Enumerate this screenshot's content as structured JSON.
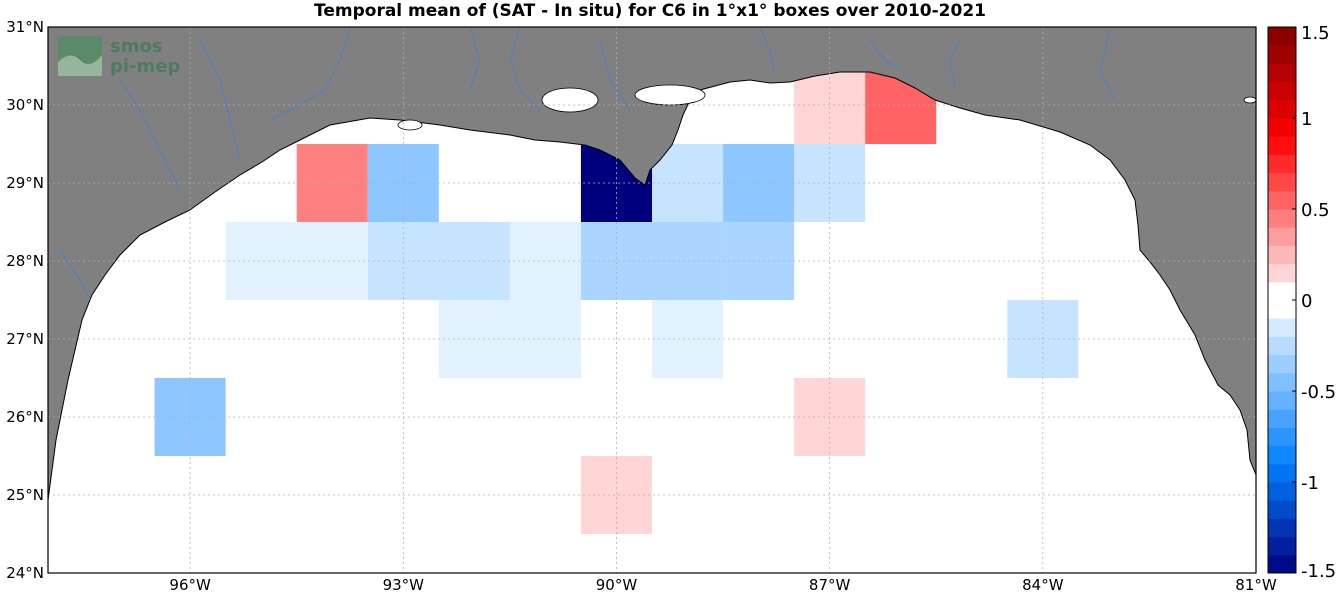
{
  "title": "Temporal mean of (SAT - In situ) for C6 in 1°x1° boxes over 2010-2021",
  "logo": {
    "line1": "smos",
    "line2": "pi-mep"
  },
  "map": {
    "lon_range": [
      -98,
      -81
    ],
    "lat_range": [
      24,
      31
    ],
    "lat_ticks": [
      {
        "value": 24,
        "label": "24°N"
      },
      {
        "value": 25,
        "label": "25°N"
      },
      {
        "value": 26,
        "label": "26°N"
      },
      {
        "value": 27,
        "label": "27°N"
      },
      {
        "value": 28,
        "label": "28°N"
      },
      {
        "value": 29,
        "label": "29°N"
      },
      {
        "value": 30,
        "label": "30°N"
      },
      {
        "value": 31,
        "label": "31°N"
      }
    ],
    "lon_ticks": [
      {
        "value": -96,
        "label": "96°W"
      },
      {
        "value": -93,
        "label": "93°W"
      },
      {
        "value": -90,
        "label": "90°W"
      },
      {
        "value": -87,
        "label": "87°W"
      },
      {
        "value": -84,
        "label": "84°W"
      },
      {
        "value": -81,
        "label": "81°W"
      }
    ],
    "land_color": "#808080",
    "river_color": "#4a7fc4",
    "grid": true
  },
  "colorbar": {
    "range": [
      -1.5,
      1.5
    ],
    "step": 0.1,
    "ticks": [
      {
        "value": 1.5,
        "label": "1.5"
      },
      {
        "value": 1,
        "label": "1"
      },
      {
        "value": 0.5,
        "label": "0.5"
      },
      {
        "value": 0,
        "label": "0"
      },
      {
        "value": -0.5,
        "label": "-0.5"
      },
      {
        "value": -1,
        "label": "-1"
      },
      {
        "value": -1.5,
        "label": "-1.5"
      }
    ],
    "neg_color": "#00007f",
    "pos_color": "#7f0000"
  },
  "chart_data": {
    "type": "heatmap",
    "title": "Temporal mean of (SAT - In situ) for C6 in 1°x1° boxes over 2010-2021",
    "xlabel": "",
    "ylabel": "",
    "xlim": [
      -98,
      -81
    ],
    "ylim": [
      24,
      31
    ],
    "cell_size_deg": 1,
    "cells": [
      {
        "lon": -94,
        "lat": 29,
        "value": 0.45
      },
      {
        "lon": -93,
        "lat": 29,
        "value": -0.4
      },
      {
        "lon": -90,
        "lat": 29,
        "value": -1.5
      },
      {
        "lon": -89,
        "lat": 29,
        "value": -0.2
      },
      {
        "lon": -88,
        "lat": 29,
        "value": -0.4
      },
      {
        "lon": -87,
        "lat": 29,
        "value": -0.2
      },
      {
        "lon": -87,
        "lat": 30,
        "value": 0.15
      },
      {
        "lon": -86,
        "lat": 30,
        "value": 0.55
      },
      {
        "lon": -95,
        "lat": 28,
        "value": -0.1
      },
      {
        "lon": -94,
        "lat": 28,
        "value": -0.1
      },
      {
        "lon": -93,
        "lat": 28,
        "value": -0.2
      },
      {
        "lon": -92,
        "lat": 28,
        "value": -0.2
      },
      {
        "lon": -91,
        "lat": 28,
        "value": -0.1
      },
      {
        "lon": -90,
        "lat": 28,
        "value": -0.3
      },
      {
        "lon": -89,
        "lat": 28,
        "value": -0.3
      },
      {
        "lon": -88,
        "lat": 28,
        "value": -0.3
      },
      {
        "lon": -92,
        "lat": 27,
        "value": -0.1
      },
      {
        "lon": -91,
        "lat": 27,
        "value": -0.1
      },
      {
        "lon": -89,
        "lat": 27,
        "value": -0.1
      },
      {
        "lon": -84,
        "lat": 27,
        "value": -0.2
      },
      {
        "lon": -96,
        "lat": 26,
        "value": -0.4
      },
      {
        "lon": -87,
        "lat": 26,
        "value": 0.15
      },
      {
        "lon": -90,
        "lat": 25,
        "value": 0.15
      }
    ]
  }
}
